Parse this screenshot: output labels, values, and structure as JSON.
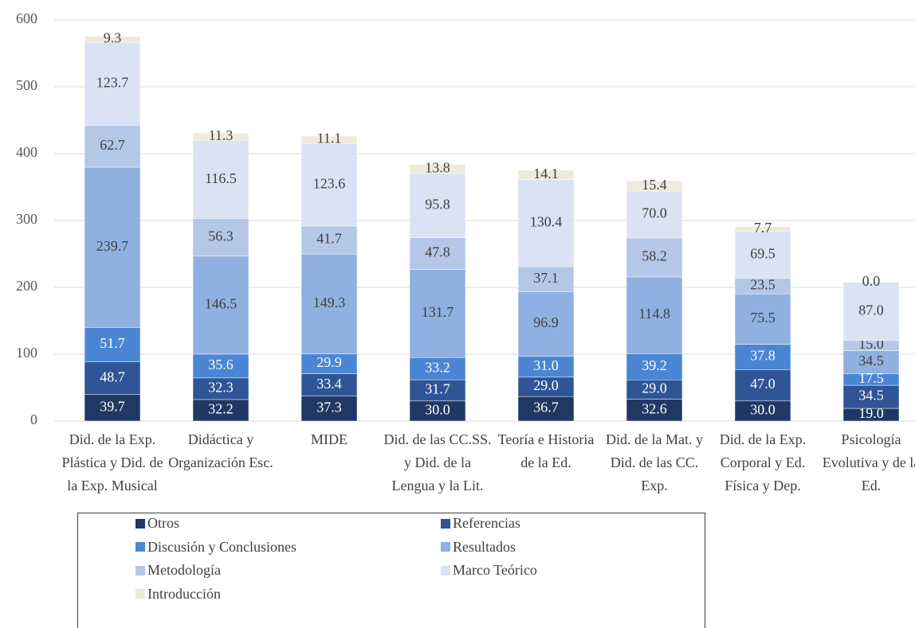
{
  "chart_data": {
    "type": "stacked_bar",
    "categories": [
      "Did. de la Exp. Plástica y Did. de la Exp. Musical",
      "Didáctica y Organización Esc.",
      "MIDE",
      "Did. de las CC.SS. y Did. de la Lengua y la Lit.",
      "Teoría e Historia de la Ed.",
      "Did. de la Mat. y Did. de las CC. Exp.",
      "Did. de la Exp. Corporal y Ed. Física y Dep.",
      "Psicología Evolutiva y de la Ed."
    ],
    "series": [
      {
        "name": "Otros",
        "color": "#203864",
        "values": [
          39.7,
          32.2,
          37.3,
          30.0,
          36.7,
          32.6,
          30.0,
          19.0
        ],
        "value_labels": [
          "39.7",
          "32.2",
          "37.3",
          "30.0",
          "36.7",
          "32.6",
          "30.0",
          "19.0"
        ]
      },
      {
        "name": "Referencias",
        "color": "#2f5597",
        "values": [
          48.7,
          32.3,
          33.4,
          31.7,
          29.0,
          29.0,
          47.0,
          34.5
        ],
        "value_labels": [
          "48.7",
          "32.3",
          "33.4",
          "31.7",
          "29.0",
          "29.0",
          "47.0",
          "34.5"
        ]
      },
      {
        "name": "Discusión y Conclusiones",
        "color": "#4a86d4",
        "values": [
          51.7,
          35.6,
          29.9,
          33.2,
          31.0,
          39.2,
          37.8,
          17.5
        ],
        "value_labels": [
          "51.7",
          "35.6",
          "29.9",
          "33.2",
          "31.0",
          "39.2",
          "37.8",
          "17.5"
        ]
      },
      {
        "name": "Resultados",
        "color": "#8fb0e0",
        "values": [
          239.7,
          146.5,
          149.3,
          131.7,
          96.9,
          114.8,
          75.5,
          34.5
        ],
        "value_labels": [
          "239.7",
          "146.5",
          "149.3",
          "131.7",
          "96.9",
          "114.8",
          "75.5",
          "34.5"
        ]
      },
      {
        "name": "Metodología",
        "color": "#b4c7e7",
        "values": [
          62.7,
          56.3,
          41.7,
          47.8,
          37.1,
          58.2,
          23.5,
          15.0
        ],
        "value_labels": [
          "62.7",
          "56.3",
          "41.7",
          "47.8",
          "37.1",
          "58.2",
          "23.5",
          "15.0"
        ]
      },
      {
        "name": "Marco Teórico",
        "color": "#dae3f3",
        "values": [
          123.7,
          116.5,
          123.6,
          95.8,
          130.4,
          70.0,
          69.5,
          87.0
        ],
        "value_labels": [
          "123.7",
          "116.5",
          "123.6",
          "95.8",
          "130.4",
          "70.0",
          "69.5",
          "87.0"
        ]
      },
      {
        "name": "Introducción",
        "color": "#eeeade",
        "values": [
          9.3,
          11.3,
          11.1,
          13.8,
          14.1,
          15.4,
          7.7,
          0.0
        ],
        "value_labels": [
          "9.3",
          "11.3",
          "11.1",
          "13.8",
          "14.1",
          "15.4",
          "7.7",
          "0.0"
        ]
      }
    ],
    "ylim": [
      0,
      600
    ],
    "yticks": [
      0,
      100,
      200,
      300,
      400,
      500,
      600
    ],
    "grid": true,
    "legend": "bottom"
  }
}
